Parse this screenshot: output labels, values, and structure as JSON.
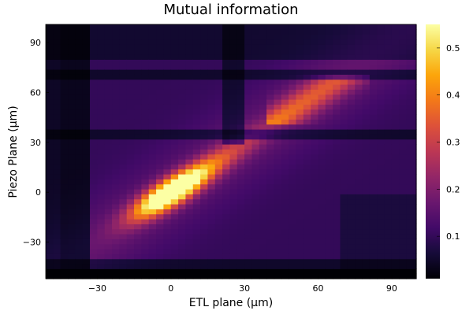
{
  "chart_data": {
    "type": "heatmap",
    "title": "Mutual information",
    "xlabel": "ETL plane (µm)",
    "ylabel": "Piezo Plane (µm)",
    "xlim": [
      -51,
      100
    ],
    "ylim": [
      -52,
      101
    ],
    "x_ticks": [
      -30,
      0,
      30,
      60,
      90
    ],
    "y_ticks": [
      -30,
      0,
      30,
      60,
      90
    ],
    "x_tick_labels": [
      "−30",
      "0",
      "30",
      "60",
      "90"
    ],
    "y_tick_labels": [
      "−30",
      "0",
      "30",
      "60",
      "90"
    ],
    "colorscale": "inferno",
    "colorbar": {
      "range": [
        0.01,
        0.55
      ],
      "ticks": [
        0.1,
        0.2,
        0.3,
        0.4,
        0.5
      ],
      "tick_labels": [
        "0.1",
        "0.2",
        "0.3",
        "0.4",
        "0.5"
      ]
    },
    "grid_step": 3,
    "features": {
      "diagonal_band": {
        "slope": 1.0,
        "intercept": 0,
        "peak_value": 0.55,
        "peak_center": [
          0,
          0
        ]
      },
      "dark_column_x": -39,
      "dark_rows_y": [
        -44,
        36,
        72
      ],
      "dark_column_x2": 25,
      "bright_region_upper": {
        "x_range": [
          40,
          80
        ],
        "y_range": [
          40,
          70
        ],
        "value": 0.32
      },
      "baseline": 0.1
    }
  }
}
